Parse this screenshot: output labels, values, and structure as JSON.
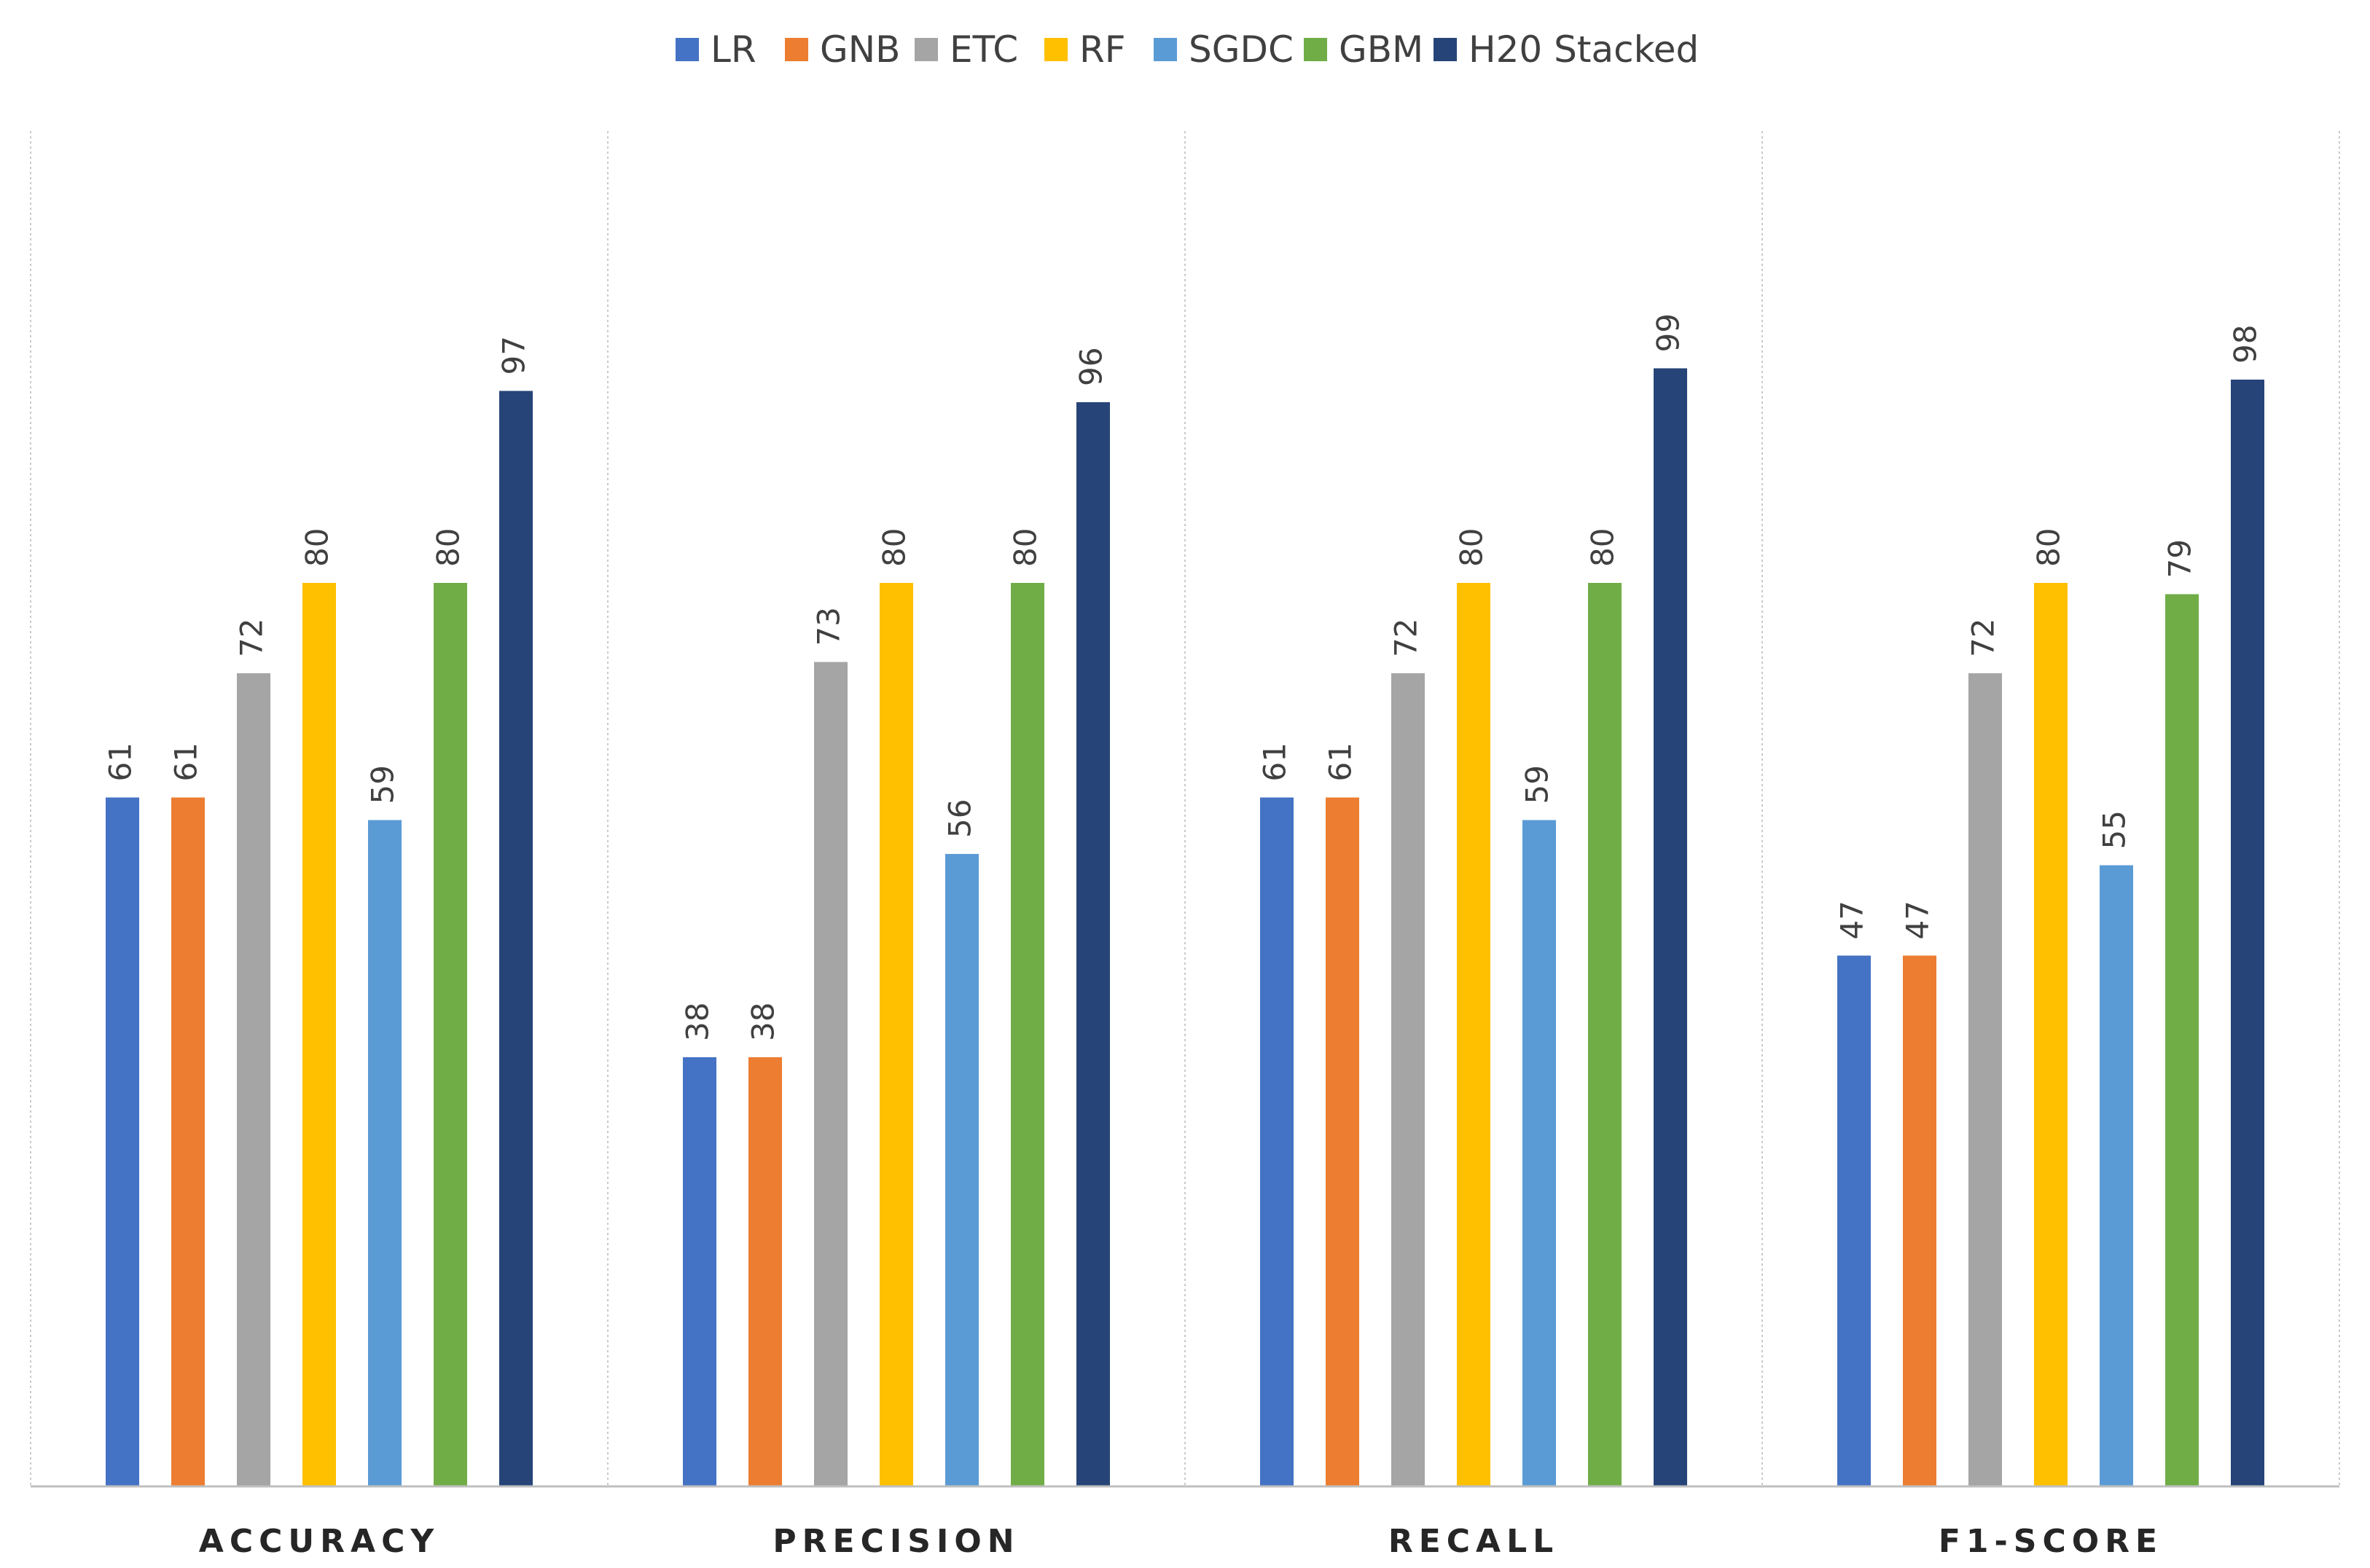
{
  "chart_data": {
    "type": "bar",
    "title": "",
    "xlabel": "",
    "ylabel": "",
    "ylim": [
      0,
      120
    ],
    "grid": false,
    "legend_position": "top-center",
    "categories": [
      "ACCURACY",
      "PRECISION",
      "RECALL",
      "F1-SCORE"
    ],
    "series": [
      {
        "name": "LR",
        "color": "#4472C4",
        "values": [
          61,
          38,
          61,
          47
        ]
      },
      {
        "name": "GNB",
        "color": "#ED7D31",
        "values": [
          61,
          38,
          61,
          47
        ]
      },
      {
        "name": "ETC",
        "color": "#A5A5A5",
        "values": [
          72,
          73,
          72,
          72
        ]
      },
      {
        "name": "RF",
        "color": "#FFC000",
        "values": [
          80,
          80,
          80,
          80
        ]
      },
      {
        "name": "SGDC",
        "color": "#5B9BD5",
        "values": [
          59,
          56,
          59,
          55
        ]
      },
      {
        "name": "GBM",
        "color": "#70AD47",
        "values": [
          80,
          80,
          80,
          79
        ]
      },
      {
        "name": "H20 Stacked",
        "color": "#264478",
        "values": [
          97,
          96,
          99,
          98
        ]
      }
    ]
  }
}
